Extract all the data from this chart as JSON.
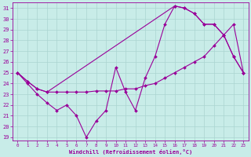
{
  "xlabel": "Windchill (Refroidissement éolien,°C)",
  "bg_color": "#c8ece8",
  "grid_color": "#aad4d0",
  "line_color": "#990099",
  "xlim": [
    -0.5,
    23.5
  ],
  "ylim": [
    18.7,
    31.5
  ],
  "yticks": [
    19,
    20,
    21,
    22,
    23,
    24,
    25,
    26,
    27,
    28,
    29,
    30,
    31
  ],
  "xticks": [
    0,
    1,
    2,
    3,
    4,
    5,
    6,
    7,
    8,
    9,
    10,
    11,
    12,
    13,
    14,
    15,
    16,
    17,
    18,
    19,
    20,
    21,
    22,
    23
  ],
  "line1_x": [
    0,
    1,
    2,
    3,
    4,
    5,
    6,
    7,
    8,
    9,
    10,
    11,
    12,
    13,
    14,
    15,
    16,
    17,
    18,
    19,
    20,
    21,
    22,
    23
  ],
  "line1_y": [
    25.0,
    24.0,
    23.0,
    22.2,
    21.5,
    22.0,
    21.0,
    19.0,
    20.5,
    21.5,
    25.5,
    23.2,
    21.5,
    24.5,
    26.5,
    29.5,
    31.2,
    31.0,
    30.5,
    29.5,
    29.5,
    28.5,
    26.5,
    25.0
  ],
  "line2_x": [
    0,
    1,
    2,
    3,
    4,
    5,
    6,
    7,
    8,
    9,
    10,
    11,
    12,
    13,
    14,
    15,
    16,
    17,
    18,
    19,
    20,
    21,
    22,
    23
  ],
  "line2_y": [
    25.0,
    24.2,
    23.5,
    23.2,
    23.2,
    23.2,
    23.2,
    23.2,
    23.3,
    23.3,
    23.3,
    23.5,
    23.5,
    23.8,
    24.0,
    24.5,
    25.0,
    25.5,
    26.0,
    26.5,
    27.5,
    28.5,
    29.5,
    25.0
  ],
  "line3_x": [
    0,
    1,
    2,
    3,
    16,
    17,
    18,
    19,
    20,
    21,
    22,
    23
  ],
  "line3_y": [
    25.0,
    24.2,
    23.5,
    23.2,
    31.2,
    31.0,
    30.5,
    29.5,
    29.5,
    28.5,
    26.5,
    25.0
  ]
}
